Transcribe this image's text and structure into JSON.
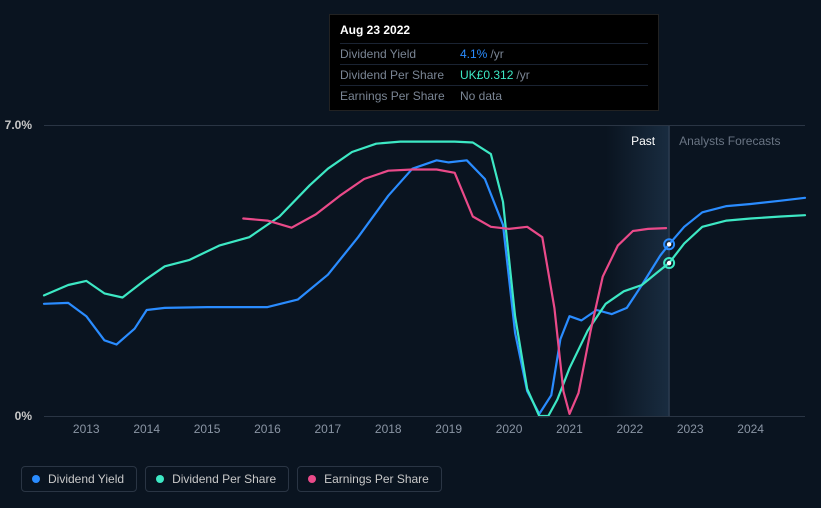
{
  "tooltip": {
    "date": "Aug 23 2022",
    "rows": [
      {
        "label": "Dividend Yield",
        "value": "4.1%",
        "unit": "/yr",
        "color": "#2a8cff"
      },
      {
        "label": "Dividend Per Share",
        "value": "UK£0.312",
        "unit": "/yr",
        "color": "#3de8c4"
      },
      {
        "label": "Earnings Per Share",
        "value": "No data",
        "unit": "",
        "color": "#7a8594"
      }
    ]
  },
  "chart": {
    "type": "line",
    "background_color": "#0a1420",
    "grid_color": "#2a3544",
    "y_axis": {
      "min": 0,
      "max": 7.0,
      "ticks": [
        {
          "v": 7.0,
          "label": "7.0%"
        },
        {
          "v": 0,
          "label": "0%"
        }
      ],
      "label_color": "#c8c8c8",
      "label_fontsize": 12
    },
    "x_axis": {
      "min": 2012.3,
      "max": 2024.9,
      "ticks": [
        2013,
        2014,
        2015,
        2016,
        2017,
        2018,
        2019,
        2020,
        2021,
        2022,
        2023,
        2024
      ],
      "label_color": "#8a95a4",
      "label_fontsize": 12
    },
    "forecast_split_x": 2022.65,
    "past_shade_start_x": 2021.6,
    "regions": {
      "past_label": "Past",
      "forecast_label": "Analysts Forecasts",
      "past_color": "#ffffff",
      "forecast_color": "#6a7584"
    },
    "series": [
      {
        "name": "Dividend Yield",
        "color": "#2a8cff",
        "marker_at": {
          "x": 2022.65,
          "y": 4.13
        },
        "points": [
          [
            2012.3,
            2.7
          ],
          [
            2012.7,
            2.72
          ],
          [
            2013.0,
            2.4
          ],
          [
            2013.3,
            1.82
          ],
          [
            2013.5,
            1.72
          ],
          [
            2013.8,
            2.1
          ],
          [
            2014.0,
            2.55
          ],
          [
            2014.3,
            2.6
          ],
          [
            2015.0,
            2.62
          ],
          [
            2015.5,
            2.62
          ],
          [
            2016.0,
            2.62
          ],
          [
            2016.5,
            2.8
          ],
          [
            2017.0,
            3.4
          ],
          [
            2017.5,
            4.3
          ],
          [
            2018.0,
            5.3
          ],
          [
            2018.4,
            5.95
          ],
          [
            2018.8,
            6.15
          ],
          [
            2019.0,
            6.1
          ],
          [
            2019.3,
            6.15
          ],
          [
            2019.6,
            5.7
          ],
          [
            2019.9,
            4.6
          ],
          [
            2020.1,
            2.0
          ],
          [
            2020.3,
            0.6
          ],
          [
            2020.5,
            0.05
          ],
          [
            2020.7,
            0.5
          ],
          [
            2020.85,
            1.85
          ],
          [
            2021.0,
            2.4
          ],
          [
            2021.2,
            2.3
          ],
          [
            2021.45,
            2.55
          ],
          [
            2021.7,
            2.45
          ],
          [
            2021.95,
            2.6
          ],
          [
            2022.2,
            3.15
          ],
          [
            2022.5,
            3.85
          ],
          [
            2022.65,
            4.13
          ],
          [
            2022.9,
            4.55
          ],
          [
            2023.2,
            4.9
          ],
          [
            2023.6,
            5.05
          ],
          [
            2024.0,
            5.1
          ],
          [
            2024.5,
            5.18
          ],
          [
            2024.9,
            5.25
          ]
        ]
      },
      {
        "name": "Dividend Per Share",
        "color": "#3de8c4",
        "marker_at": {
          "x": 2022.65,
          "y": 3.68
        },
        "points": [
          [
            2012.3,
            2.9
          ],
          [
            2012.7,
            3.15
          ],
          [
            2013.0,
            3.25
          ],
          [
            2013.3,
            2.95
          ],
          [
            2013.6,
            2.85
          ],
          [
            2014.0,
            3.3
          ],
          [
            2014.3,
            3.6
          ],
          [
            2014.7,
            3.75
          ],
          [
            2015.2,
            4.1
          ],
          [
            2015.7,
            4.3
          ],
          [
            2016.2,
            4.8
          ],
          [
            2016.7,
            5.55
          ],
          [
            2017.0,
            5.95
          ],
          [
            2017.4,
            6.35
          ],
          [
            2017.8,
            6.55
          ],
          [
            2018.2,
            6.6
          ],
          [
            2018.7,
            6.6
          ],
          [
            2019.1,
            6.6
          ],
          [
            2019.4,
            6.58
          ],
          [
            2019.7,
            6.3
          ],
          [
            2019.9,
            5.15
          ],
          [
            2020.1,
            2.4
          ],
          [
            2020.3,
            0.65
          ],
          [
            2020.5,
            0.0
          ],
          [
            2020.65,
            0.0
          ],
          [
            2020.8,
            0.4
          ],
          [
            2021.0,
            1.15
          ],
          [
            2021.3,
            2.05
          ],
          [
            2021.6,
            2.7
          ],
          [
            2021.9,
            3.0
          ],
          [
            2022.2,
            3.15
          ],
          [
            2022.45,
            3.45
          ],
          [
            2022.65,
            3.68
          ],
          [
            2022.9,
            4.15
          ],
          [
            2023.2,
            4.55
          ],
          [
            2023.6,
            4.7
          ],
          [
            2024.0,
            4.75
          ],
          [
            2024.5,
            4.8
          ],
          [
            2024.9,
            4.83
          ]
        ]
      },
      {
        "name": "Earnings Per Share",
        "color": "#ea4a89",
        "marker_at": null,
        "points": [
          [
            2015.6,
            4.75
          ],
          [
            2016.0,
            4.7
          ],
          [
            2016.4,
            4.53
          ],
          [
            2016.8,
            4.85
          ],
          [
            2017.2,
            5.3
          ],
          [
            2017.6,
            5.7
          ],
          [
            2018.0,
            5.9
          ],
          [
            2018.4,
            5.93
          ],
          [
            2018.8,
            5.93
          ],
          [
            2019.1,
            5.85
          ],
          [
            2019.4,
            4.8
          ],
          [
            2019.7,
            4.55
          ],
          [
            2020.0,
            4.5
          ],
          [
            2020.3,
            4.55
          ],
          [
            2020.55,
            4.3
          ],
          [
            2020.75,
            2.6
          ],
          [
            2020.9,
            0.6
          ],
          [
            2021.0,
            0.05
          ],
          [
            2021.15,
            0.55
          ],
          [
            2021.35,
            2.05
          ],
          [
            2021.55,
            3.35
          ],
          [
            2021.8,
            4.1
          ],
          [
            2022.05,
            4.45
          ],
          [
            2022.3,
            4.5
          ],
          [
            2022.6,
            4.52
          ]
        ]
      }
    ],
    "legend": {
      "items": [
        "Dividend Yield",
        "Dividend Per Share",
        "Earnings Per Share"
      ],
      "border_color": "#2a3544",
      "text_color": "#c8c8c8"
    }
  }
}
